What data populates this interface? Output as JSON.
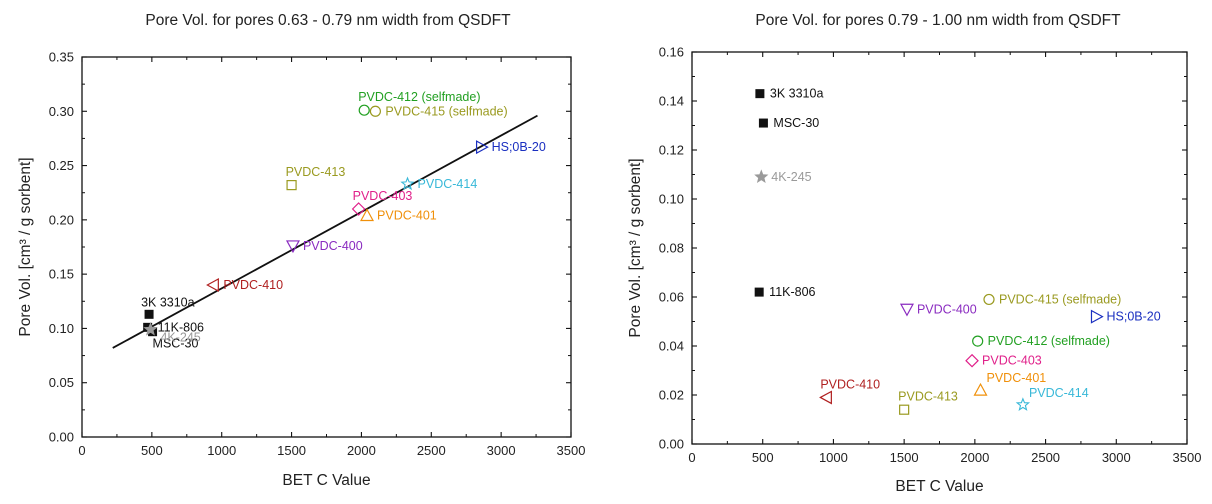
{
  "chart_data": [
    {
      "type": "scatter",
      "title": "Pore Vol. for pores 0.63 - 0.79 nm width from QSDFT",
      "xlabel": "BET C Value",
      "ylabel": "Pore Vol. [cm³ / g sorbent]",
      "xlim": [
        0,
        3500
      ],
      "ylim": [
        0,
        0.35
      ],
      "xticks": [
        "0",
        "500",
        "1000",
        "1500",
        "2000",
        "2500",
        "3000",
        "3500"
      ],
      "yticks": [
        "0.00",
        "0.05",
        "0.10",
        "0.15",
        "0.20",
        "0.25",
        "0.30",
        "0.35"
      ],
      "grid": false,
      "trendline": {
        "x": [
          220,
          3260
        ],
        "y": [
          0.082,
          0.296
        ]
      },
      "points": [
        {
          "label": "3K 3310a",
          "x": 480,
          "y": 0.113,
          "marker": "square-filled",
          "color": "#111111",
          "label_pos": "above-left"
        },
        {
          "label": "11K-806",
          "x": 470,
          "y": 0.101,
          "marker": "square-filled",
          "color": "#111111",
          "label_pos": "right"
        },
        {
          "label": "MSC-30",
          "x": 505,
          "y": 0.097,
          "marker": "square-filled",
          "color": "#111111",
          "label_pos": "below"
        },
        {
          "label": "4K-245",
          "x": 490,
          "y": 0.099,
          "marker": "star",
          "color": "#9a9a9a",
          "label_pos": "right-low"
        },
        {
          "label": "PVDC-410",
          "x": 940,
          "y": 0.14,
          "marker": "triangle-left",
          "color": "#b02020",
          "label_pos": "right"
        },
        {
          "label": "PVDC-400",
          "x": 1510,
          "y": 0.176,
          "marker": "triangle-down",
          "color": "#8a2bc0",
          "label_pos": "right"
        },
        {
          "label": "PVDC-413",
          "x": 1500,
          "y": 0.232,
          "marker": "square-open",
          "color": "#9a9a20",
          "label_pos": "above"
        },
        {
          "label": "PVDC-403",
          "x": 1980,
          "y": 0.21,
          "marker": "diamond",
          "color": "#e0208a",
          "label_pos": "above"
        },
        {
          "label": "PVDC-401",
          "x": 2040,
          "y": 0.204,
          "marker": "triangle-up",
          "color": "#f0900a",
          "label_pos": "right"
        },
        {
          "label": "PVDC-414",
          "x": 2330,
          "y": 0.233,
          "marker": "star",
          "color": "#38b8d8",
          "label_pos": "right"
        },
        {
          "label": "PVDC-412 (selfmade)",
          "x": 2020,
          "y": 0.301,
          "marker": "circle-open",
          "color": "#22a022",
          "label_pos": "above"
        },
        {
          "label": "PVDC-415 (selfmade)",
          "x": 2100,
          "y": 0.3,
          "marker": "circle-open",
          "color": "#9a9a20",
          "label_pos": "right"
        },
        {
          "label": "HS;0B-20",
          "x": 2860,
          "y": 0.267,
          "marker": "triangle-right",
          "color": "#1a2fc0",
          "label_pos": "right"
        }
      ]
    },
    {
      "type": "scatter",
      "title": "Pore Vol. for pores 0.79 - 1.00 nm width from QSDFT",
      "xlabel": "BET C Value",
      "ylabel": "Pore Vol. [cm³ / g sorbent]",
      "xlim": [
        0,
        3500
      ],
      "ylim": [
        0,
        0.16
      ],
      "xticks": [
        "0",
        "500",
        "1000",
        "1500",
        "2000",
        "2500",
        "3000",
        "3500"
      ],
      "yticks": [
        "0.00",
        "0.02",
        "0.04",
        "0.06",
        "0.08",
        "0.10",
        "0.12",
        "0.14",
        "0.16"
      ],
      "grid": false,
      "points": [
        {
          "label": "3K 3310a",
          "x": 480,
          "y": 0.143,
          "marker": "square-filled",
          "color": "#111111",
          "label_pos": "right"
        },
        {
          "label": "MSC-30",
          "x": 505,
          "y": 0.131,
          "marker": "square-filled",
          "color": "#111111",
          "label_pos": "right"
        },
        {
          "label": "4K-245",
          "x": 490,
          "y": 0.109,
          "marker": "star",
          "color": "#9a9a9a",
          "label_pos": "right"
        },
        {
          "label": "11K-806",
          "x": 475,
          "y": 0.062,
          "marker": "square-filled",
          "color": "#111111",
          "label_pos": "right"
        },
        {
          "label": "PVDC-400",
          "x": 1520,
          "y": 0.055,
          "marker": "triangle-down",
          "color": "#8a2bc0",
          "label_pos": "right"
        },
        {
          "label": "PVDC-415 (selfmade)",
          "x": 2100,
          "y": 0.059,
          "marker": "circle-open",
          "color": "#9a9a20",
          "label_pos": "right"
        },
        {
          "label": "HS;0B-20",
          "x": 2860,
          "y": 0.052,
          "marker": "triangle-right",
          "color": "#1a2fc0",
          "label_pos": "right"
        },
        {
          "label": "PVDC-412 (selfmade)",
          "x": 2020,
          "y": 0.042,
          "marker": "circle-open",
          "color": "#22a022",
          "label_pos": "right"
        },
        {
          "label": "PVDC-403",
          "x": 1980,
          "y": 0.034,
          "marker": "diamond",
          "color": "#e0208a",
          "label_pos": "right"
        },
        {
          "label": "PVDC-401",
          "x": 2040,
          "y": 0.022,
          "marker": "triangle-up",
          "color": "#f0900a",
          "label_pos": "above-right"
        },
        {
          "label": "PVDC-410",
          "x": 950,
          "y": 0.019,
          "marker": "triangle-left",
          "color": "#b02020",
          "label_pos": "above"
        },
        {
          "label": "PVDC-413",
          "x": 1500,
          "y": 0.014,
          "marker": "square-open",
          "color": "#9a9a20",
          "label_pos": "above"
        },
        {
          "label": "PVDC-414",
          "x": 2340,
          "y": 0.016,
          "marker": "star",
          "color": "#38b8d8",
          "label_pos": "above-right"
        }
      ]
    }
  ]
}
